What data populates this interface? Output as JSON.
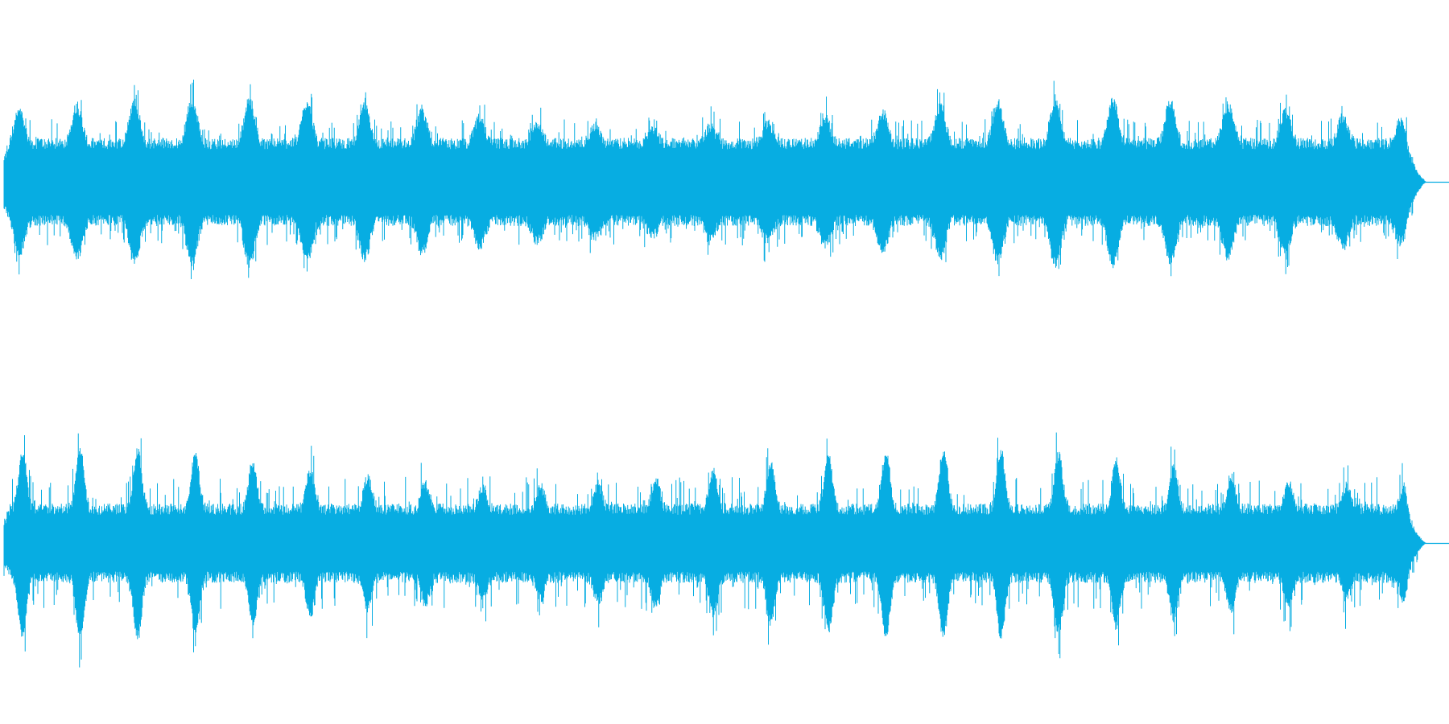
{
  "waveform": {
    "color": "#07ade2",
    "channels": 2
  }
}
